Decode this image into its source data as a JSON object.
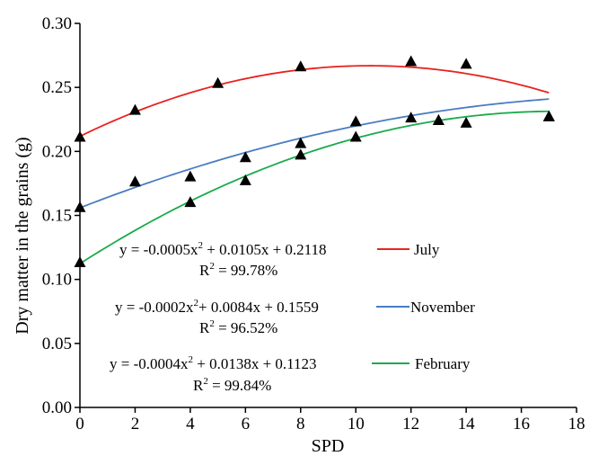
{
  "chart_data": {
    "type": "scatter",
    "xlabel": "SPD",
    "ylabel": "Dry matter in the grains (g)",
    "xlim": [
      0,
      18
    ],
    "ylim": [
      0,
      0.3
    ],
    "x_ticks": [
      0,
      2,
      4,
      6,
      8,
      10,
      12,
      14,
      16,
      18
    ],
    "y_ticks": [
      0,
      0.05,
      0.1,
      0.15,
      0.2,
      0.25,
      0.3
    ],
    "x_tick_labels": [
      "0",
      "2",
      "4",
      "6",
      "8",
      "10",
      "12",
      "14",
      "16",
      "18"
    ],
    "y_tick_labels": [
      "0.00",
      "0.05",
      "0.10",
      "0.15",
      "0.20",
      "0.25",
      "0.30"
    ],
    "grid": false,
    "marker": "triangle",
    "marker_color": "#000000",
    "series": [
      {
        "name": "July",
        "color": "#e8231f",
        "points": [
          [
            0,
            0.211
          ],
          [
            2,
            0.232
          ],
          [
            5,
            0.253
          ],
          [
            8,
            0.266
          ],
          [
            12,
            0.27
          ],
          [
            14,
            0.268
          ]
        ],
        "fit": {
          "a": -0.0005,
          "b": 0.0105,
          "c": 0.2118,
          "x_range": [
            0,
            17
          ]
        },
        "equation": {
          "prefix": "y = -0.0005x",
          "sup": "2",
          "suffix": " + 0.0105x + 0.2118"
        },
        "r2": {
          "prefix": "R",
          "sup": "2",
          "suffix": " = 99.78%"
        }
      },
      {
        "name": "November",
        "color": "#4a7dc0",
        "points": [
          [
            0,
            0.156
          ],
          [
            2,
            0.176
          ],
          [
            4,
            0.18
          ],
          [
            6,
            0.195
          ],
          [
            8,
            0.206
          ],
          [
            10,
            0.223
          ],
          [
            12,
            0.226
          ],
          [
            13,
            0.224
          ],
          [
            14,
            0.222
          ],
          [
            17,
            0.227
          ]
        ],
        "fit": {
          "a": -0.0002,
          "b": 0.0084,
          "c": 0.1559,
          "x_range": [
            0,
            17
          ]
        },
        "equation": {
          "prefix": "y = -0.0002x",
          "sup": "2",
          "suffix": "+ 0.0084x + 0.1559"
        },
        "r2": {
          "prefix": "R",
          "sup": "2",
          "suffix": " = 96.52%"
        }
      },
      {
        "name": "February",
        "color": "#1aab4b",
        "points": [
          [
            0,
            0.113
          ],
          [
            4,
            0.16
          ],
          [
            6,
            0.177
          ],
          [
            8,
            0.197
          ],
          [
            10,
            0.211
          ],
          [
            13,
            0.224
          ],
          [
            17,
            0.227
          ]
        ],
        "fit": {
          "a": -0.0004,
          "b": 0.0138,
          "c": 0.1123,
          "x_range": [
            0,
            17
          ]
        },
        "equation": {
          "prefix": "y = -0.0004x",
          "sup": "2",
          "suffix": " + 0.0138x + 0.1123"
        },
        "r2": {
          "prefix": "R",
          "sup": "2",
          "suffix": " = 99.84%"
        }
      }
    ]
  }
}
